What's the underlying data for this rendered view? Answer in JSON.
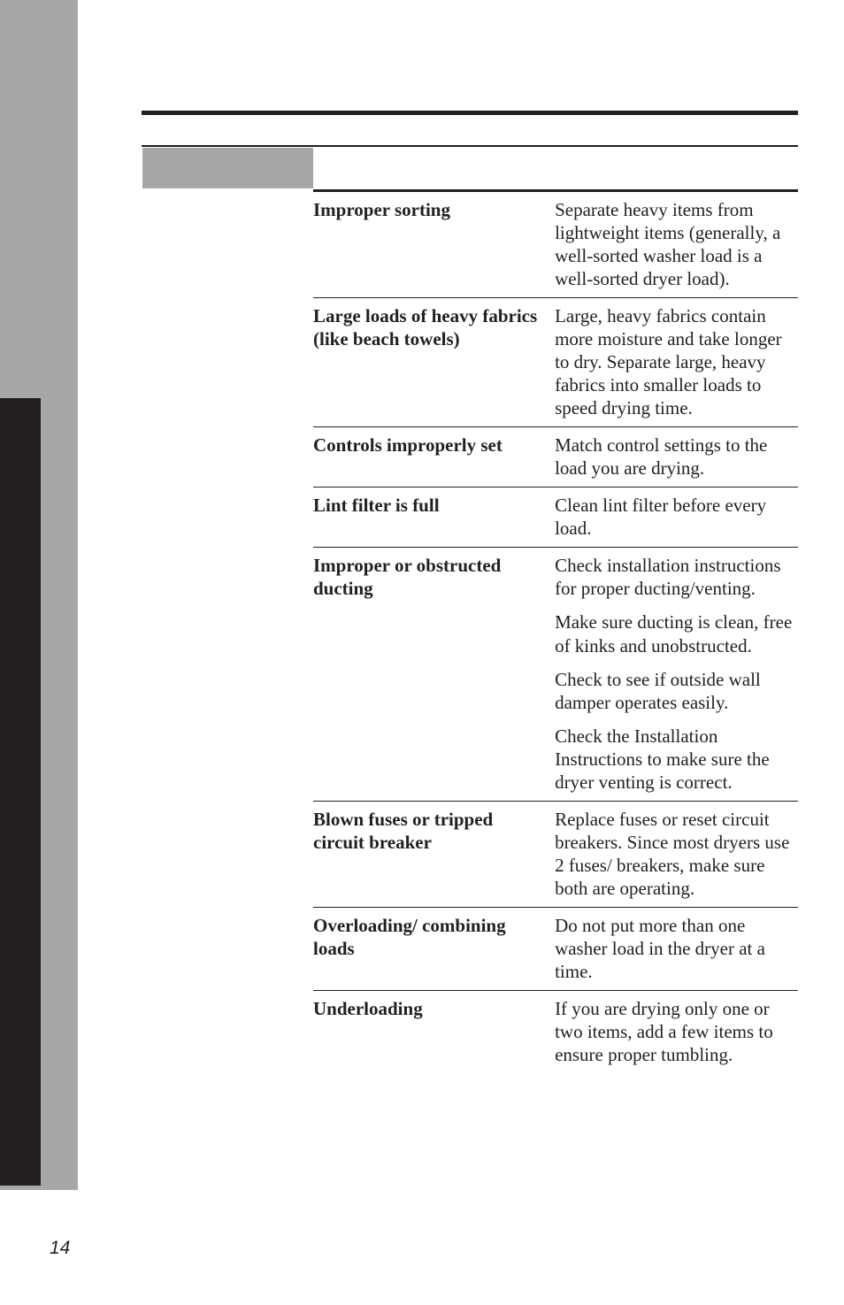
{
  "page_number": "14",
  "rows": [
    {
      "cause": "Improper sorting",
      "solutions": [
        "Separate heavy items from lightweight items (generally, a well-sorted washer load is a well-sorted dryer load)."
      ]
    },
    {
      "cause": "Large loads of heavy fabrics (like beach towels)",
      "solutions": [
        "Large, heavy fabrics contain more moisture and take longer to dry. Separate large, heavy fabrics into smaller loads to speed drying time."
      ]
    },
    {
      "cause": "Controls improperly set",
      "solutions": [
        "Match control settings to the load you are drying."
      ]
    },
    {
      "cause": "Lint filter is full",
      "solutions": [
        "Clean lint filter before every load."
      ]
    },
    {
      "cause": "Improper or obstructed ducting",
      "solutions": [
        "Check installation instructions for proper ducting/venting.",
        "Make sure ducting is clean, free of kinks and unobstructed.",
        "Check to see if outside wall damper operates easily.",
        "Check the Installation Instructions to make sure the dryer venting is correct."
      ]
    },
    {
      "cause": "Blown fuses or tripped circuit breaker",
      "solutions": [
        "Replace fuses or reset circuit breakers. Since most dryers use 2 fuses/ breakers, make sure both are operating."
      ]
    },
    {
      "cause": "Overloading/ combining loads",
      "solutions": [
        "Do not put more than one washer load in the dryer at a time."
      ]
    },
    {
      "cause": "Underloading",
      "solutions": [
        "If you are drying only one or two items, add a few items to ensure proper tumbling."
      ]
    }
  ]
}
